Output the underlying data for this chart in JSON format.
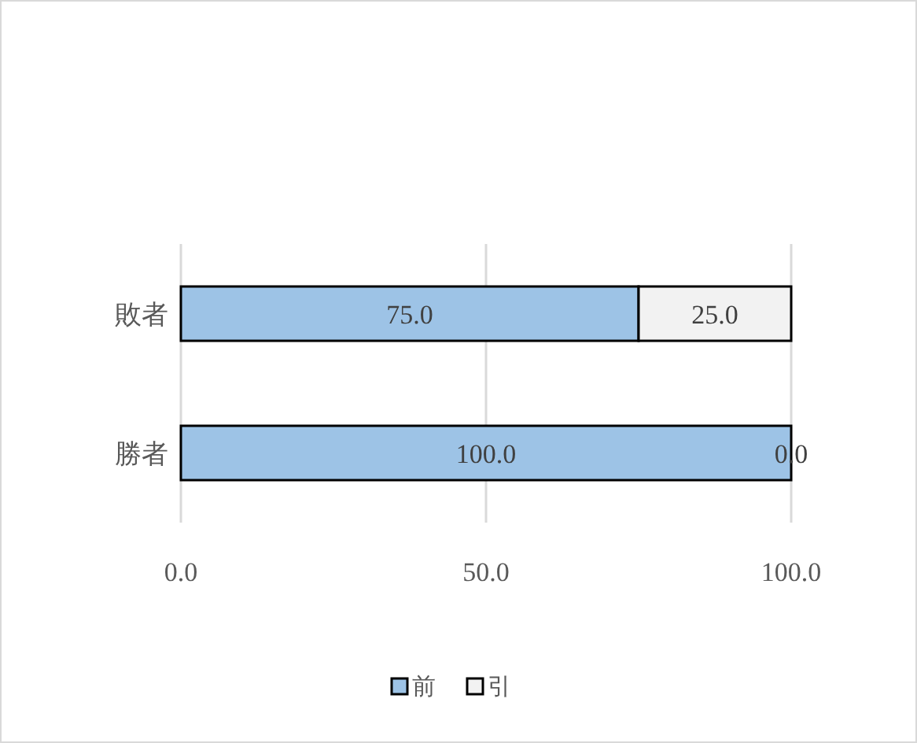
{
  "chart_data": {
    "type": "bar",
    "orientation": "horizontal",
    "stacked": true,
    "categories": [
      "敗者",
      "勝者"
    ],
    "series": [
      {
        "name": "前",
        "color": "#9dc3e6",
        "values": [
          75,
          100
        ],
        "value_labels": [
          "75.0",
          "100.0"
        ]
      },
      {
        "name": "引",
        "color": "#f2f2f2",
        "values": [
          25,
          0
        ],
        "value_labels": [
          "25.0",
          "0.0"
        ]
      }
    ],
    "xlim": [
      0,
      100
    ],
    "xticks": [
      {
        "value": 0,
        "label": "0.0"
      },
      {
        "value": 50,
        "label": "50.0"
      },
      {
        "value": 100,
        "label": "100.0"
      }
    ],
    "grid": "x",
    "legend": "bottom"
  }
}
